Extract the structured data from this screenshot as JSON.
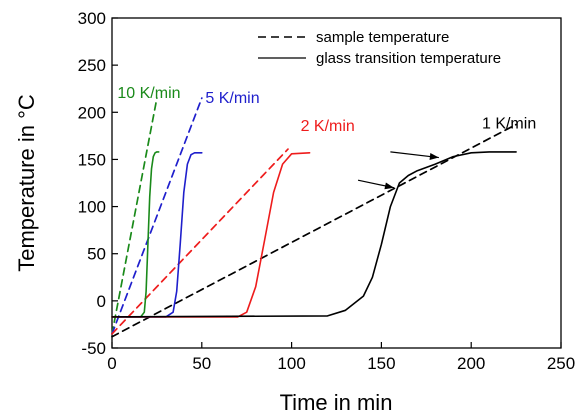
{
  "chart_data": {
    "type": "line",
    "xlabel": "Time in min",
    "ylabel": "Temperature in °C",
    "xlim": [
      0,
      250
    ],
    "ylim": [
      -50,
      300
    ],
    "xticks": [
      0,
      50,
      100,
      150,
      200,
      250
    ],
    "yticks": [
      -50,
      0,
      50,
      100,
      150,
      200,
      250,
      300
    ],
    "grid": false,
    "legend_position": "top-right",
    "legend": [
      {
        "label": "sample temperature",
        "style": "dashed"
      },
      {
        "label": "glass transition temperature",
        "style": "solid"
      }
    ],
    "series": [
      {
        "rate": "10 K/min",
        "color": "#1a8a1a",
        "kind": "sample",
        "x": [
          0,
          25
        ],
        "y": [
          -35,
          215
        ]
      },
      {
        "rate": "5 K/min",
        "color": "#1f1fcc",
        "kind": "sample",
        "x": [
          0,
          50
        ],
        "y": [
          -35,
          215
        ]
      },
      {
        "rate": "2 K/min",
        "color": "#ee1c1c",
        "kind": "sample",
        "x": [
          0,
          98
        ],
        "y": [
          -35,
          161
        ]
      },
      {
        "rate": "1 K/min",
        "color": "#000000",
        "kind": "sample",
        "x": [
          0,
          225
        ],
        "y": [
          -38,
          187
        ]
      },
      {
        "rate": "10 K/min",
        "color": "#1a8a1a",
        "kind": "glass",
        "x": [
          8,
          16,
          18,
          19,
          20,
          21,
          22,
          23,
          24,
          25,
          26
        ],
        "y": [
          -17,
          -17,
          -12,
          10,
          60,
          110,
          140,
          153,
          157,
          158,
          158
        ]
      },
      {
        "rate": "5 K/min",
        "color": "#1f1fcc",
        "kind": "glass",
        "x": [
          3,
          30,
          34,
          36,
          38,
          40,
          42,
          44,
          46,
          50
        ],
        "y": [
          -17,
          -17,
          -12,
          10,
          60,
          115,
          145,
          155,
          157,
          157
        ]
      },
      {
        "rate": "2 K/min",
        "color": "#ee1c1c",
        "kind": "glass",
        "x": [
          0,
          70,
          75,
          80,
          85,
          90,
          95,
          100,
          110
        ],
        "y": [
          -17,
          -17,
          -12,
          15,
          65,
          115,
          145,
          156,
          157
        ]
      },
      {
        "rate": "1 K/min",
        "color": "#000000",
        "kind": "glass",
        "x": [
          0,
          120,
          130,
          140,
          145,
          150,
          155,
          160,
          165,
          170,
          180,
          190,
          200,
          210,
          225
        ],
        "y": [
          -17,
          -16,
          -10,
          5,
          25,
          60,
          100,
          125,
          133,
          138,
          145,
          153,
          157,
          158,
          158
        ]
      }
    ],
    "rate_labels": [
      {
        "text": "10 K/min",
        "color": "#1a8a1a",
        "x": 3,
        "y": 215
      },
      {
        "text": "5 K/min",
        "color": "#1f1fcc",
        "x": 52,
        "y": 210
      },
      {
        "text": "2 K/min",
        "color": "#ee1c1c",
        "x": 105,
        "y": 180
      },
      {
        "text": "1 K/min",
        "color": "#000000",
        "x": 206,
        "y": 183
      }
    ],
    "arrows": [
      {
        "from": [
          137,
          128
        ],
        "to": [
          157,
          120
        ]
      },
      {
        "from": [
          155,
          158
        ],
        "to": [
          182,
          152
        ]
      }
    ]
  }
}
